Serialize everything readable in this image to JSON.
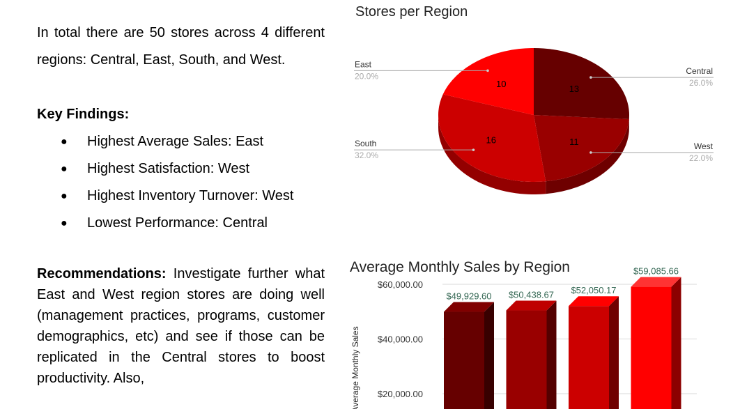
{
  "text": {
    "intro": "In total there are 50 stores across 4 different regions: Central, East, South, and West.",
    "key_findings_title": "Key Findings:",
    "findings": [
      "Highest Average Sales: East",
      "Highest Satisfaction: West",
      "Highest Inventory Turnover: West",
      "Lowest Performance: Central"
    ],
    "bullet": "●",
    "recommendations_title": "Recommendations:",
    "recommendations_body": " Investigate further what East and West region stores are doing well (management practices, programs, customer demographics, etc) and see if those can be replicated in the Central stores to boost productivity. Also,"
  },
  "chart_data": [
    {
      "type": "pie",
      "title": "Stores per Region",
      "slices": [
        {
          "label": "Central",
          "value": 13,
          "percent": "26.0%",
          "color": "#660000"
        },
        {
          "label": "West",
          "value": 11,
          "percent": "22.0%",
          "color": "#990000"
        },
        {
          "label": "South",
          "value": 16,
          "percent": "32.0%",
          "color": "#cc0000"
        },
        {
          "label": "East",
          "value": 10,
          "percent": "20.0%",
          "color": "#ff0000"
        }
      ]
    },
    {
      "type": "bar",
      "title": "Average Monthly Sales by Region",
      "ylabel": "Average Monthly Sales",
      "ylim": [
        0,
        60000
      ],
      "yticks": [
        "$20,000.00",
        "$40,000.00",
        "$60,000.00"
      ],
      "ytick_values": [
        20000,
        40000,
        60000
      ],
      "values": [
        49929.6,
        50438.67,
        52050.17,
        59085.66
      ],
      "value_labels": [
        "$49,929.60",
        "$50,438.67",
        "$52,050.17",
        "$59,085.66"
      ],
      "colors": [
        "#660000",
        "#990000",
        "#cc0000",
        "#ff0000"
      ],
      "label_color": "#356854"
    }
  ]
}
